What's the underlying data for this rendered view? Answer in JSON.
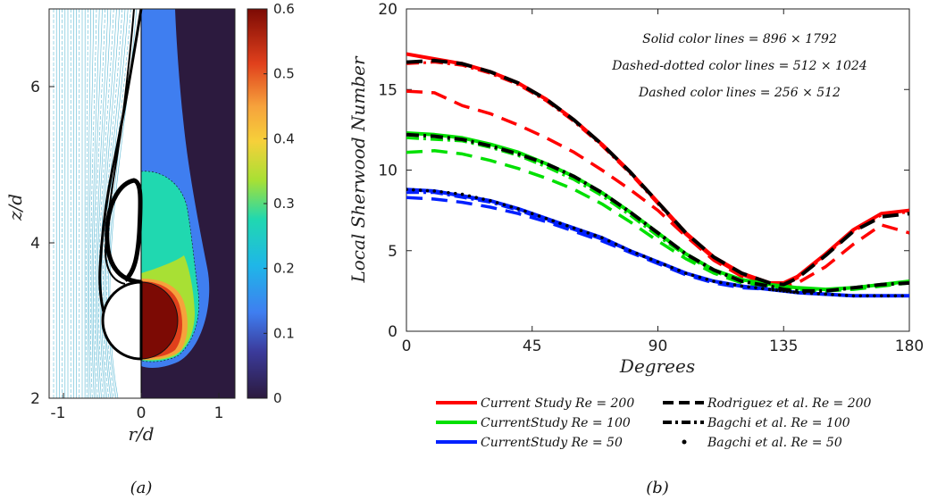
{
  "chart_data": [
    {
      "panel": "(a)",
      "type": "heatmap",
      "xlabel": "r/d",
      "ylabel": "z/d",
      "xlim": [
        -1.2,
        1.2
      ],
      "ylim": [
        2,
        7
      ],
      "xticks": [
        "-1",
        "0",
        "1"
      ],
      "yticks": [
        "2",
        "4",
        "6"
      ],
      "colorbar": {
        "range": [
          0,
          0.6
        ],
        "ticks": [
          "0",
          "0.1",
          "0.2",
          "0.3",
          "0.4",
          "0.5",
          "0.6"
        ]
      },
      "colors": {
        "streamline": "#5bb8d4",
        "level_0": "#2c1a3e",
        "level_0_1": "#3f7ef0",
        "level_0_2": "#20d8b0",
        "level_0_3": "#a8e034",
        "level_0_4": "#f6a23c",
        "level_0_6": "#7c0a04"
      }
    },
    {
      "panel": "(b)",
      "type": "line",
      "xlabel": "Degrees",
      "ylabel": "Local Sherwood Number",
      "xlim": [
        0,
        180
      ],
      "ylim": [
        0,
        20
      ],
      "xticks": [
        "0",
        "45",
        "90",
        "135",
        "180"
      ],
      "yticks": [
        "0",
        "5",
        "10",
        "15",
        "20"
      ],
      "annotations": [
        "Solid color lines = 896 × 1792",
        "Dashed-dotted color lines = 512 × 1024",
        "Dashed color lines = 256 × 512"
      ],
      "x": [
        0,
        10,
        20,
        30,
        40,
        50,
        60,
        70,
        80,
        90,
        100,
        110,
        120,
        130,
        135,
        140,
        150,
        160,
        170,
        180
      ],
      "series": [
        {
          "name": "Current Study Re = 200 (896x1792)",
          "color": "#ff0000",
          "style": "solid",
          "width": 4,
          "values": [
            17.2,
            16.9,
            16.6,
            16.1,
            15.4,
            14.4,
            13.1,
            11.6,
            9.9,
            8.0,
            6.1,
            4.6,
            3.6,
            3.0,
            3.0,
            3.4,
            4.8,
            6.3,
            7.3,
            7.5
          ]
        },
        {
          "name": "Current Study Re = 200 (512x1024)",
          "color": "#ff0000",
          "style": "dashdot",
          "width": 3,
          "values": [
            16.6,
            16.7,
            16.5,
            16.0,
            15.3,
            14.3,
            13.0,
            11.5,
            9.8,
            7.9,
            6.0,
            4.5,
            3.5,
            2.9,
            2.9,
            3.3,
            4.7,
            6.2,
            7.2,
            7.4
          ]
        },
        {
          "name": "Current Study Re = 200 (256x512)",
          "color": "#ff0000",
          "style": "dashed",
          "width": 3.5,
          "values": [
            14.9,
            14.8,
            14.0,
            13.5,
            12.8,
            12.0,
            11.1,
            10.0,
            8.8,
            7.5,
            5.9,
            4.4,
            3.4,
            2.8,
            2.8,
            3.0,
            4.0,
            5.4,
            6.6,
            6.1
          ]
        },
        {
          "name": "Current Study Re = 100 (896x1792)",
          "color": "#00e000",
          "style": "solid",
          "width": 4,
          "values": [
            12.3,
            12.2,
            12.0,
            11.6,
            11.1,
            10.4,
            9.6,
            8.6,
            7.4,
            6.1,
            4.8,
            3.8,
            3.2,
            2.9,
            2.8,
            2.7,
            2.6,
            2.7,
            2.9,
            3.1
          ]
        },
        {
          "name": "Current Study Re = 100 (512x1024)",
          "color": "#00e000",
          "style": "dashdot",
          "width": 3,
          "values": [
            12.0,
            11.9,
            11.8,
            11.4,
            10.9,
            10.2,
            9.4,
            8.4,
            7.2,
            5.9,
            4.7,
            3.7,
            3.1,
            2.8,
            2.7,
            2.6,
            2.6,
            2.7,
            2.9,
            3.0
          ]
        },
        {
          "name": "Current Study Re = 100 (256x512)",
          "color": "#00e000",
          "style": "dashed",
          "width": 3.5,
          "values": [
            11.1,
            11.2,
            11.0,
            10.6,
            10.1,
            9.5,
            8.8,
            7.9,
            6.8,
            5.6,
            4.5,
            3.6,
            3.0,
            2.8,
            2.7,
            2.6,
            2.5,
            2.6,
            2.8,
            3.0
          ]
        },
        {
          "name": "Current Study Re = 50 (896x1792)",
          "color": "#0020ff",
          "style": "solid",
          "width": 4,
          "values": [
            8.8,
            8.7,
            8.4,
            8.1,
            7.6,
            7.0,
            6.4,
            5.8,
            5.0,
            4.3,
            3.6,
            3.1,
            2.8,
            2.6,
            2.5,
            2.4,
            2.3,
            2.2,
            2.2,
            2.2
          ]
        },
        {
          "name": "Current Study Re = 50 (512x1024)",
          "color": "#0020ff",
          "style": "dashdot",
          "width": 3,
          "values": [
            8.6,
            8.6,
            8.3,
            8.0,
            7.5,
            6.9,
            6.3,
            5.7,
            5.0,
            4.3,
            3.6,
            3.1,
            2.8,
            2.6,
            2.5,
            2.4,
            2.3,
            2.2,
            2.2,
            2.2
          ]
        },
        {
          "name": "Current Study Re = 50 (256x512)",
          "color": "#0020ff",
          "style": "dashed",
          "width": 3.5,
          "values": [
            8.3,
            8.2,
            8.0,
            7.7,
            7.3,
            6.8,
            6.2,
            5.6,
            4.9,
            4.2,
            3.5,
            3.0,
            2.7,
            2.6,
            2.5,
            2.4,
            2.3,
            2.2,
            2.2,
            2.2
          ]
        },
        {
          "name": "Rodriguez et al. Re = 200",
          "color": "#000000",
          "style": "dashed",
          "width": 4,
          "values": [
            16.7,
            16.8,
            16.6,
            16.1,
            15.4,
            14.4,
            13.1,
            11.6,
            9.9,
            8.0,
            6.1,
            4.6,
            3.6,
            3.0,
            2.9,
            3.3,
            4.7,
            6.2,
            7.1,
            7.3
          ]
        },
        {
          "name": "Bagchi et al. Re = 100",
          "color": "#000000",
          "style": "dashdot",
          "width": 4,
          "values": [
            12.2,
            12.1,
            11.9,
            11.5,
            11.0,
            10.4,
            9.6,
            8.6,
            7.4,
            6.1,
            4.8,
            3.8,
            3.1,
            2.8,
            2.6,
            2.5,
            2.5,
            2.7,
            2.9,
            3.0
          ]
        },
        {
          "name": "Bagchi et al. Re = 50",
          "color": "#000000",
          "style": "dots",
          "values": [
            8.8,
            8.7,
            8.5,
            8.1,
            7.6,
            7.0,
            6.4,
            5.8,
            5.0,
            4.3,
            3.6,
            3.1,
            2.8,
            2.6,
            2.5,
            2.4,
            2.3,
            2.2,
            2.2,
            2.2
          ]
        }
      ],
      "legend": [
        {
          "label": "Current Study Re = 200",
          "color": "#ff0000",
          "style": "solid"
        },
        {
          "label": "Rodriguez et al. Re = 200",
          "color": "#000000",
          "style": "dashed"
        },
        {
          "label": "CurrentStudy Re = 100",
          "color": "#00e000",
          "style": "solid"
        },
        {
          "label": "Bagchi et al. Re = 100",
          "color": "#000000",
          "style": "dashdot"
        },
        {
          "label": "CurrentStudy Re = 50",
          "color": "#0020ff",
          "style": "solid"
        },
        {
          "label": "Bagchi et al. Re = 50",
          "color": "#000000",
          "style": "dots"
        }
      ]
    }
  ],
  "captions": {
    "a": "(a)",
    "b": "(b)"
  }
}
